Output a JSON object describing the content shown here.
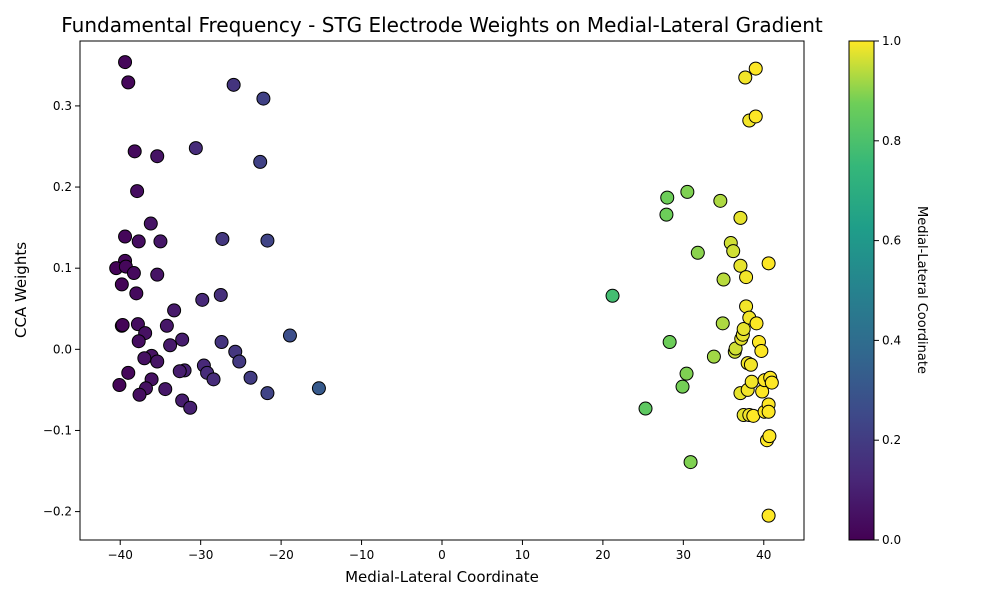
{
  "chart_data": {
    "type": "scatter",
    "title": "Fundamental Frequency - STG Electrode Weights on Medial-Lateral Gradient",
    "xlabel": "Medial-Lateral Coordinate",
    "ylabel": "CCA Weights",
    "colorbar_label": "Medial-Lateral Coordinate",
    "xlim": [
      -45,
      45
    ],
    "ylim": [
      -0.235,
      0.38
    ],
    "x_ticks": [
      -40,
      -30,
      -20,
      -10,
      0,
      10,
      20,
      30,
      40
    ],
    "x_tick_labels": [
      "−40",
      "−30",
      "−20",
      "−10",
      "0",
      "10",
      "20",
      "30",
      "40"
    ],
    "y_ticks": [
      -0.2,
      -0.1,
      0.0,
      0.1,
      0.2,
      0.3
    ],
    "y_tick_labels": [
      "−0.2",
      "−0.1",
      "0.0",
      "0.1",
      "0.2",
      "0.3"
    ],
    "colorbar_range": [
      0.0,
      1.0
    ],
    "colorbar_ticks": [
      0.0,
      0.2,
      0.4,
      0.6,
      0.8,
      1.0
    ],
    "colorbar_tick_labels": [
      "0.0",
      "0.2",
      "0.4",
      "0.6",
      "0.8",
      "1.0"
    ],
    "colormap": "viridis",
    "marker_edge_color": "#000000",
    "grid": false,
    "points": [
      {
        "x": -39.4,
        "y": 0.354,
        "c": 0.02
      },
      {
        "x": -39.0,
        "y": 0.329,
        "c": 0.02
      },
      {
        "x": -38.2,
        "y": 0.244,
        "c": 0.03
      },
      {
        "x": -37.9,
        "y": 0.195,
        "c": 0.04
      },
      {
        "x": -36.2,
        "y": 0.155,
        "c": 0.06
      },
      {
        "x": -35.4,
        "y": 0.238,
        "c": 0.06
      },
      {
        "x": -39.4,
        "y": 0.139,
        "c": 0.02
      },
      {
        "x": -37.7,
        "y": 0.133,
        "c": 0.04
      },
      {
        "x": -35.0,
        "y": 0.133,
        "c": 0.07
      },
      {
        "x": -39.4,
        "y": 0.109,
        "c": 0.02
      },
      {
        "x": -40.5,
        "y": 0.1,
        "c": 0.01
      },
      {
        "x": -39.3,
        "y": 0.102,
        "c": 0.02
      },
      {
        "x": -38.3,
        "y": 0.094,
        "c": 0.03
      },
      {
        "x": -35.4,
        "y": 0.092,
        "c": 0.06
      },
      {
        "x": -39.8,
        "y": 0.08,
        "c": 0.01
      },
      {
        "x": -38.0,
        "y": 0.069,
        "c": 0.03
      },
      {
        "x": -33.3,
        "y": 0.048,
        "c": 0.08
      },
      {
        "x": -39.8,
        "y": 0.029,
        "c": 0.01
      },
      {
        "x": -39.7,
        "y": 0.03,
        "c": 0.01
      },
      {
        "x": -37.8,
        "y": 0.031,
        "c": 0.04
      },
      {
        "x": -34.2,
        "y": 0.029,
        "c": 0.07
      },
      {
        "x": -36.9,
        "y": 0.02,
        "c": 0.05
      },
      {
        "x": -37.7,
        "y": 0.01,
        "c": 0.04
      },
      {
        "x": -32.3,
        "y": 0.012,
        "c": 0.09
      },
      {
        "x": -33.8,
        "y": 0.005,
        "c": 0.08
      },
      {
        "x": -36.1,
        "y": -0.008,
        "c": 0.05
      },
      {
        "x": -37.0,
        "y": -0.011,
        "c": 0.05
      },
      {
        "x": -35.4,
        "y": -0.015,
        "c": 0.06
      },
      {
        "x": -39.0,
        "y": -0.029,
        "c": 0.02
      },
      {
        "x": -32.0,
        "y": -0.026,
        "c": 0.1
      },
      {
        "x": -32.6,
        "y": -0.027,
        "c": 0.09
      },
      {
        "x": -36.1,
        "y": -0.037,
        "c": 0.05
      },
      {
        "x": -40.1,
        "y": -0.044,
        "c": 0.01
      },
      {
        "x": -36.8,
        "y": -0.048,
        "c": 0.05
      },
      {
        "x": -34.4,
        "y": -0.049,
        "c": 0.07
      },
      {
        "x": -37.6,
        "y": -0.056,
        "c": 0.04
      },
      {
        "x": -32.3,
        "y": -0.063,
        "c": 0.09
      },
      {
        "x": -31.3,
        "y": -0.072,
        "c": 0.1
      },
      {
        "x": -30.6,
        "y": 0.248,
        "c": 0.14
      },
      {
        "x": -29.8,
        "y": 0.061,
        "c": 0.13
      },
      {
        "x": -27.5,
        "y": 0.067,
        "c": 0.15
      },
      {
        "x": -29.6,
        "y": -0.02,
        "c": 0.13
      },
      {
        "x": -29.2,
        "y": -0.029,
        "c": 0.14
      },
      {
        "x": -28.4,
        "y": -0.037,
        "c": 0.14
      },
      {
        "x": -25.9,
        "y": 0.326,
        "c": 0.17
      },
      {
        "x": -27.3,
        "y": 0.136,
        "c": 0.18
      },
      {
        "x": -27.4,
        "y": 0.009,
        "c": 0.17
      },
      {
        "x": -25.7,
        "y": -0.003,
        "c": 0.18
      },
      {
        "x": -25.2,
        "y": -0.015,
        "c": 0.19
      },
      {
        "x": -23.8,
        "y": -0.035,
        "c": 0.2
      },
      {
        "x": -22.2,
        "y": 0.309,
        "c": 0.22
      },
      {
        "x": -22.6,
        "y": 0.231,
        "c": 0.22
      },
      {
        "x": -21.7,
        "y": 0.134,
        "c": 0.23
      },
      {
        "x": -21.7,
        "y": -0.054,
        "c": 0.23
      },
      {
        "x": -18.9,
        "y": 0.017,
        "c": 0.27
      },
      {
        "x": -15.3,
        "y": -0.048,
        "c": 0.32
      },
      {
        "x": 21.2,
        "y": 0.066,
        "c": 0.78
      },
      {
        "x": 25.3,
        "y": -0.073,
        "c": 0.84
      },
      {
        "x": 28.0,
        "y": 0.187,
        "c": 0.87
      },
      {
        "x": 27.9,
        "y": 0.166,
        "c": 0.87
      },
      {
        "x": 28.3,
        "y": 0.009,
        "c": 0.87
      },
      {
        "x": 29.9,
        "y": -0.046,
        "c": 0.88
      },
      {
        "x": 30.4,
        "y": -0.03,
        "c": 0.89
      },
      {
        "x": 30.5,
        "y": 0.194,
        "c": 0.89
      },
      {
        "x": 30.9,
        "y": -0.139,
        "c": 0.89
      },
      {
        "x": 31.8,
        "y": 0.119,
        "c": 0.9
      },
      {
        "x": 33.8,
        "y": -0.009,
        "c": 0.92
      },
      {
        "x": 34.6,
        "y": 0.183,
        "c": 0.93
      },
      {
        "x": 35.0,
        "y": 0.086,
        "c": 0.94
      },
      {
        "x": 34.9,
        "y": 0.032,
        "c": 0.93
      },
      {
        "x": 35.9,
        "y": 0.131,
        "c": 0.96
      },
      {
        "x": 36.2,
        "y": 0.121,
        "c": 0.96
      },
      {
        "x": 36.4,
        "y": -0.003,
        "c": 0.96
      },
      {
        "x": 36.5,
        "y": 0.001,
        "c": 0.96
      },
      {
        "x": 37.1,
        "y": 0.162,
        "c": 0.98
      },
      {
        "x": 37.1,
        "y": 0.103,
        "c": 0.98
      },
      {
        "x": 37.2,
        "y": 0.013,
        "c": 0.98
      },
      {
        "x": 37.4,
        "y": 0.018,
        "c": 0.98
      },
      {
        "x": 37.5,
        "y": 0.025,
        "c": 0.98
      },
      {
        "x": 37.1,
        "y": -0.054,
        "c": 0.98
      },
      {
        "x": 37.5,
        "y": -0.081,
        "c": 0.98
      },
      {
        "x": 37.7,
        "y": 0.335,
        "c": 0.99
      },
      {
        "x": 37.8,
        "y": 0.089,
        "c": 0.99
      },
      {
        "x": 37.8,
        "y": 0.053,
        "c": 0.99
      },
      {
        "x": 38.0,
        "y": -0.017,
        "c": 0.99
      },
      {
        "x": 38.0,
        "y": -0.05,
        "c": 0.99
      },
      {
        "x": 38.2,
        "y": 0.282,
        "c": 0.99
      },
      {
        "x": 38.2,
        "y": 0.039,
        "c": 0.99
      },
      {
        "x": 38.2,
        "y": -0.081,
        "c": 0.99
      },
      {
        "x": 38.4,
        "y": -0.019,
        "c": 0.99
      },
      {
        "x": 38.5,
        "y": -0.04,
        "c": 0.99
      },
      {
        "x": 38.7,
        "y": -0.082,
        "c": 1.0
      },
      {
        "x": 39.0,
        "y": 0.346,
        "c": 1.0
      },
      {
        "x": 39.0,
        "y": 0.287,
        "c": 1.0
      },
      {
        "x": 39.1,
        "y": 0.032,
        "c": 1.0
      },
      {
        "x": 39.4,
        "y": 0.009,
        "c": 1.0
      },
      {
        "x": 39.7,
        "y": -0.002,
        "c": 1.0
      },
      {
        "x": 39.8,
        "y": -0.052,
        "c": 1.0
      },
      {
        "x": 40.1,
        "y": -0.038,
        "c": 1.0
      },
      {
        "x": 40.1,
        "y": -0.077,
        "c": 1.0
      },
      {
        "x": 40.4,
        "y": -0.112,
        "c": 1.0
      },
      {
        "x": 40.6,
        "y": 0.106,
        "c": 1.0
      },
      {
        "x": 40.6,
        "y": -0.068,
        "c": 1.0
      },
      {
        "x": 40.6,
        "y": -0.077,
        "c": 1.0
      },
      {
        "x": 40.7,
        "y": -0.107,
        "c": 1.0
      },
      {
        "x": 40.8,
        "y": -0.035,
        "c": 1.0
      },
      {
        "x": 41.0,
        "y": -0.041,
        "c": 1.0
      },
      {
        "x": 40.6,
        "y": -0.205,
        "c": 1.0
      }
    ]
  }
}
